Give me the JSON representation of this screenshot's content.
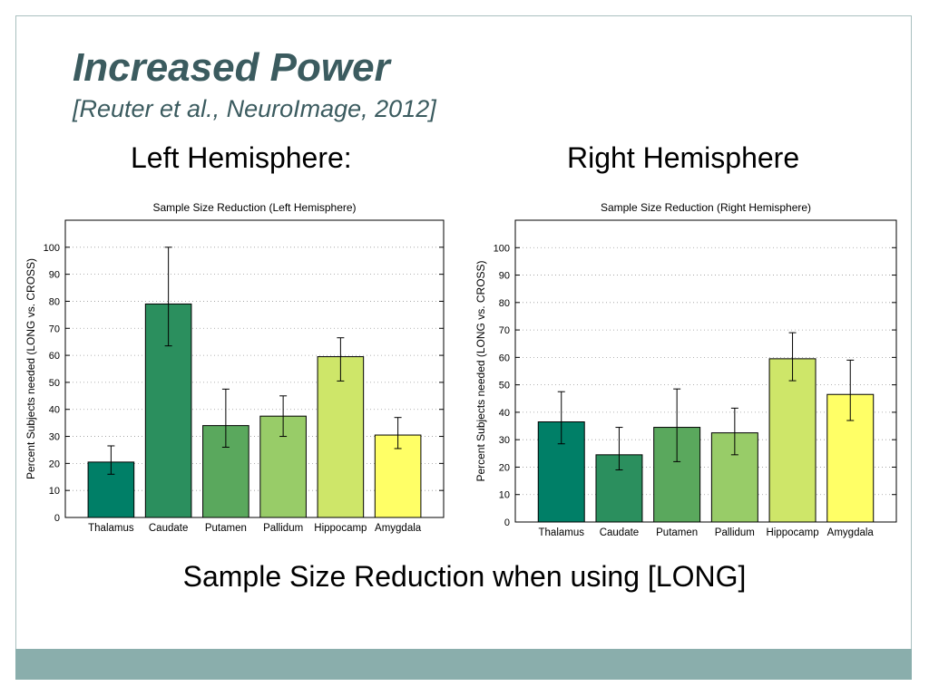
{
  "slide": {
    "title": "Increased Power",
    "subtitle": "[Reuter et al., NeuroImage, 2012]",
    "left_heading": "Left Hemisphere:",
    "right_heading": "Right Hemisphere",
    "caption": "Sample Size Reduction when using [LONG]"
  },
  "colors": {
    "title": "#3b5b5f",
    "frame_border": "#a9c0bf",
    "footer_band": "#8aaeac"
  },
  "chart_data": [
    {
      "type": "bar",
      "title": "Sample Size Reduction (Left Hemisphere)",
      "xlabel": "",
      "ylabel": "Percent Subjects needed (LONG vs. CROSS)",
      "ylim": [
        0,
        110
      ],
      "yticks": [
        0,
        10,
        20,
        30,
        40,
        50,
        60,
        70,
        80,
        90,
        100
      ],
      "grid": "horizontal-dotted",
      "categories": [
        "Thalamus",
        "Caudate",
        "Putamen",
        "Pallidum",
        "Hippocamp",
        "Amygdala"
      ],
      "values": [
        20.5,
        79,
        34,
        37.5,
        59.5,
        30.5
      ],
      "error_low": [
        16,
        63.5,
        26,
        30,
        50.5,
        25.5
      ],
      "error_high": [
        26.5,
        100,
        47.5,
        45,
        66.5,
        37
      ],
      "bar_colors": [
        "#007f67",
        "#2b8f5e",
        "#5aa85d",
        "#98cc68",
        "#cee669",
        "#ffff66"
      ]
    },
    {
      "type": "bar",
      "title": "Sample Size Reduction (Right Hemisphere)",
      "xlabel": "",
      "ylabel": "Percent Subjects needed (LONG vs. CROSS)",
      "ylim": [
        0,
        110
      ],
      "yticks": [
        0,
        10,
        20,
        30,
        40,
        50,
        60,
        70,
        80,
        90,
        100
      ],
      "grid": "horizontal-dotted",
      "categories": [
        "Thalamus",
        "Caudate",
        "Putamen",
        "Pallidum",
        "Hippocamp",
        "Amygdala"
      ],
      "values": [
        36.5,
        24.5,
        34.5,
        32.5,
        59.5,
        46.5
      ],
      "error_low": [
        28.5,
        19,
        22,
        24.5,
        51.5,
        37
      ],
      "error_high": [
        47.5,
        34.5,
        48.5,
        41.5,
        69,
        59
      ],
      "bar_colors": [
        "#007f67",
        "#2b8f5e",
        "#5aa85d",
        "#98cc68",
        "#cee669",
        "#ffff66"
      ]
    }
  ]
}
